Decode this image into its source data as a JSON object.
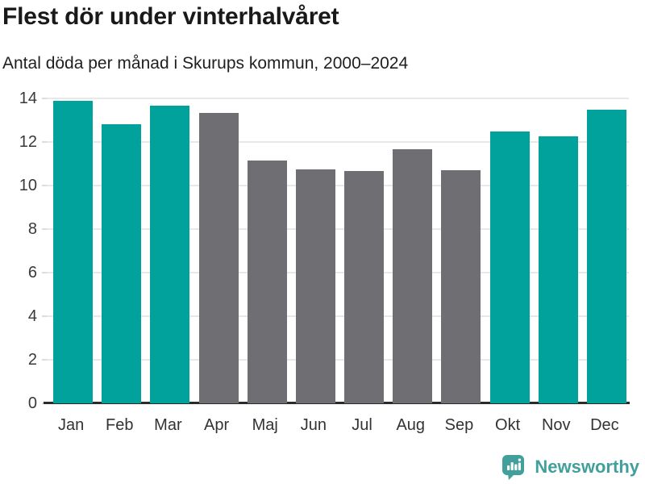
{
  "header": {
    "title": "Flest dör under vinterhalvåret",
    "subtitle": "Antal döda per månad i Skurups kommun, 2000–2024"
  },
  "footer": {
    "brand": "Newsworthy",
    "logo_icon": "speech-bubble-with-bar-chart-and-exclamation"
  },
  "colors": {
    "winter_bar": "#00a29b",
    "summer_bar": "#6e6e73",
    "gridline": "#e8e8e8",
    "zero_axis": "#2b2b2b",
    "brand_teal": "#41a09b",
    "title_text": "#191919",
    "axis_text": "#3a3a3a"
  },
  "chart_data": {
    "type": "bar",
    "title": "Flest dör under vinterhalvåret",
    "subtitle": "Antal döda per månad i Skurups kommun, 2000–2024",
    "categories": [
      "Jan",
      "Feb",
      "Mar",
      "Apr",
      "Maj",
      "Jun",
      "Jul",
      "Aug",
      "Sep",
      "Okt",
      "Nov",
      "Dec"
    ],
    "values": [
      13.9,
      12.8,
      13.65,
      13.35,
      11.15,
      10.75,
      10.65,
      11.65,
      10.7,
      12.5,
      12.25,
      13.5
    ],
    "bar_colors": [
      "#00a29b",
      "#00a29b",
      "#00a29b",
      "#6e6e73",
      "#6e6e73",
      "#6e6e73",
      "#6e6e73",
      "#6e6e73",
      "#6e6e73",
      "#00a29b",
      "#00a29b",
      "#00a29b"
    ],
    "xlabel": "",
    "ylabel": "",
    "ylim": [
      0,
      14
    ],
    "yticks": [
      0,
      2,
      4,
      6,
      8,
      10,
      12,
      14
    ],
    "grid": "horizontal",
    "legend": "none"
  }
}
